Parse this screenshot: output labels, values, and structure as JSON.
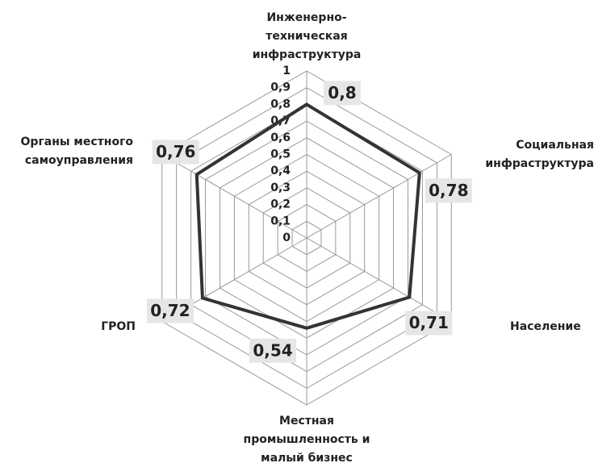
{
  "chart_data": {
    "type": "radar",
    "categories": [
      "Инженерно-\nтехническая\nинфраструктура",
      "Социальная\nинфраструктура",
      "Население",
      "Местная\nпромышленность и\nмалый бизнес",
      "ГРОП",
      "Органы местного\nсамоуправления"
    ],
    "series": [
      {
        "color": "#333333",
        "values": [
          0.8,
          0.78,
          0.71,
          0.54,
          0.72,
          0.76
        ],
        "value_labels": [
          "0,8",
          "0,78",
          "0,71",
          "0,54",
          "0,72",
          "0,76"
        ]
      }
    ],
    "ylim": [
      0,
      1
    ],
    "yticks": [
      0,
      {
        "value": 0.1,
        "label": "0,1"
      },
      {
        "value": 0.2,
        "label": "0,2"
      },
      {
        "value": 0.3,
        "label": "0,3"
      },
      {
        "value": 0.4,
        "label": "0,4"
      },
      {
        "value": 0.5,
        "label": "0,5"
      },
      {
        "value": 0.6,
        "label": "0,6"
      },
      {
        "value": 0.7,
        "label": "0,7"
      },
      {
        "value": 0.8,
        "label": "0,8"
      },
      {
        "value": 0.9,
        "label": "0,9"
      },
      1
    ],
    "grid": true
  }
}
